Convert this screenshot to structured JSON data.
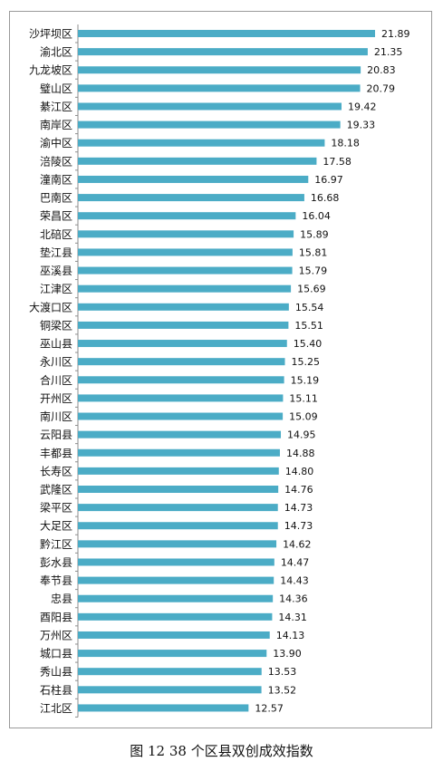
{
  "caption": "图 12 38 个区县双创成效指数",
  "chart_data": {
    "type": "bar",
    "orientation": "horizontal",
    "title": "",
    "xlabel": "",
    "ylabel": "",
    "xlim": [
      0,
      22.8
    ],
    "grid": false,
    "legend": "none",
    "bar_color": "#4bacc6",
    "categories": [
      "沙坪坝区",
      "渝北区",
      "九龙坡区",
      "璧山区",
      "綦江区",
      "南岸区",
      "渝中区",
      "涪陵区",
      "潼南区",
      "巴南区",
      "荣昌区",
      "北碚区",
      "垫江县",
      "巫溪县",
      "江津区",
      "大渡口区",
      "铜梁区",
      "巫山县",
      "永川区",
      "合川区",
      "开州区",
      "南川区",
      "云阳县",
      "丰都县",
      "长寿区",
      "武隆区",
      "梁平区",
      "大足区",
      "黔江区",
      "彭水县",
      "奉节县",
      "忠县",
      "酉阳县",
      "万州区",
      "城口县",
      "秀山县",
      "石柱县",
      "江北区"
    ],
    "values": [
      21.89,
      21.35,
      20.83,
      20.79,
      19.42,
      19.33,
      18.18,
      17.58,
      16.97,
      16.68,
      16.04,
      15.89,
      15.81,
      15.79,
      15.69,
      15.54,
      15.51,
      15.4,
      15.25,
      15.19,
      15.11,
      15.09,
      14.95,
      14.88,
      14.8,
      14.76,
      14.73,
      14.73,
      14.62,
      14.47,
      14.43,
      14.36,
      14.31,
      14.13,
      13.9,
      13.53,
      13.52,
      12.57
    ],
    "value_labels": [
      "21.89",
      "21.35",
      "20.83",
      "20.79",
      "19.42",
      "19.33",
      "18.18",
      "17.58",
      "16.97",
      "16.68",
      "16.04",
      "15.89",
      "15.81",
      "15.79",
      "15.69",
      "15.54",
      "15.51",
      "15.40",
      "15.25",
      "15.19",
      "15.11",
      "15.09",
      "14.95",
      "14.88",
      "14.80",
      "14.76",
      "14.73",
      "14.73",
      "14.62",
      "14.47",
      "14.43",
      "14.36",
      "14.31",
      "14.13",
      "13.90",
      "13.53",
      "13.52",
      "12.57"
    ]
  }
}
